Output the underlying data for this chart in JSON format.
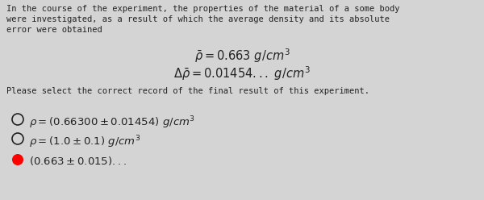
{
  "bg_color": "#d4d4d4",
  "text_color": "#222222",
  "para1_line1": "In the course of the experiment, the properties of the material of a some body",
  "para1_line2": "were investigated, as a result of which the average density and its absolute",
  "para1_line3": "error were obtained",
  "formula1": "$\\bar{\\rho}=0.663\\ g/cm^3$",
  "formula2": "$\\Delta\\bar{\\rho}=0.01454...\\ g/cm^3$",
  "question": "Please select the correct record of the final result of this experiment.",
  "option1": "$\\rho=(0.66300\\pm0.01454)\\ g/cm^3$",
  "option2": "$\\rho=(1.0\\pm0.1)\\ g/cm^3$",
  "option3_partial": "$(0.663\\pm0.015)...$",
  "para_fontsize": 7.5,
  "formula_fontsize": 10.5,
  "question_fontsize": 7.5,
  "option_fontsize": 9.5
}
